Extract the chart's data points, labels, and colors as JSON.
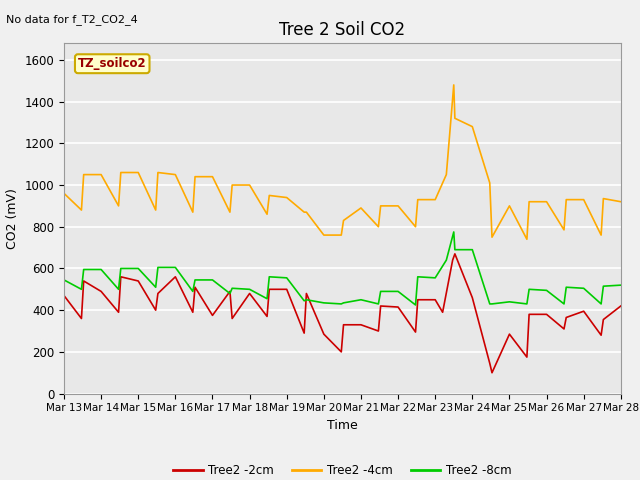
{
  "title": "Tree 2 Soil CO2",
  "top_left_text": "No data for f_T2_CO2_4",
  "ylabel": "CO2 (mV)",
  "xlabel": "Time",
  "legend_label": "TZ_soilco2",
  "ylim": [
    0,
    1680
  ],
  "yticks": [
    0,
    200,
    400,
    600,
    800,
    1000,
    1200,
    1400,
    1600
  ],
  "xtick_labels": [
    "Mar 13",
    "Mar 14",
    "Mar 15",
    "Mar 16",
    "Mar 17",
    "Mar 18",
    "Mar 19",
    "Mar 20",
    "Mar 21",
    "Mar 22",
    "Mar 23",
    "Mar 24",
    "Mar 25",
    "Mar 26",
    "Mar 27",
    "Mar 28"
  ],
  "series_labels": [
    "Tree2 -2cm",
    "Tree2 -4cm",
    "Tree2 -8cm"
  ],
  "series_colors": [
    "#cc0000",
    "#ffaa00",
    "#00cc00"
  ],
  "background_color": "#e8e8e8",
  "fig_background": "#f0f0f0",
  "title_fontsize": 12,
  "legend_box_color": "#ffffcc",
  "legend_box_edge": "#ccaa00",
  "red_x": [
    0,
    0.47,
    0.53,
    1,
    1.47,
    1.53,
    2,
    2.47,
    2.53,
    3,
    3.47,
    3.53,
    4,
    4.47,
    4.53,
    5,
    5.47,
    5.53,
    6,
    6.47,
    6.53,
    7,
    7.47,
    7.53,
    8,
    8.47,
    8.53,
    9,
    9.47,
    9.53,
    10,
    10.2,
    10.47,
    10.53,
    11,
    11.47,
    11.53,
    12,
    12.47,
    12.53,
    13,
    13.47,
    13.53,
    14,
    14.47,
    14.53,
    15
  ],
  "red_y": [
    470,
    360,
    540,
    490,
    390,
    560,
    540,
    400,
    480,
    560,
    390,
    510,
    375,
    490,
    360,
    480,
    370,
    500,
    500,
    290,
    480,
    285,
    200,
    330,
    330,
    300,
    420,
    415,
    295,
    450,
    450,
    390,
    640,
    670,
    460,
    145,
    100,
    285,
    175,
    380,
    380,
    310,
    365,
    395,
    280,
    355,
    420
  ],
  "orange_x": [
    0,
    0.47,
    0.53,
    1,
    1.47,
    1.53,
    2,
    2.47,
    2.53,
    3,
    3.47,
    3.53,
    4,
    4.47,
    4.53,
    5,
    5.47,
    5.53,
    6,
    6.47,
    6.53,
    7,
    7.47,
    7.53,
    8,
    8.47,
    8.53,
    9,
    9.47,
    9.53,
    10,
    10.3,
    10.5,
    10.53,
    11,
    11.47,
    11.53,
    12,
    12.47,
    12.53,
    13,
    13.47,
    13.53,
    14,
    14.47,
    14.53,
    15
  ],
  "orange_y": [
    960,
    880,
    1050,
    1050,
    900,
    1060,
    1060,
    880,
    1060,
    1050,
    870,
    1040,
    1040,
    870,
    1000,
    1000,
    860,
    950,
    940,
    870,
    870,
    760,
    760,
    830,
    890,
    800,
    900,
    900,
    800,
    930,
    930,
    1050,
    1480,
    1320,
    1280,
    1010,
    750,
    900,
    740,
    920,
    920,
    785,
    930,
    930,
    760,
    935,
    920
  ],
  "green_x": [
    0,
    0.47,
    0.53,
    1,
    1.47,
    1.53,
    2,
    2.47,
    2.53,
    3,
    3.47,
    3.53,
    4,
    4.47,
    4.53,
    5,
    5.47,
    5.53,
    6,
    6.47,
    6.53,
    7,
    7.47,
    7.53,
    8,
    8.47,
    8.53,
    9,
    9.47,
    9.53,
    10,
    10.3,
    10.5,
    10.53,
    11,
    11.47,
    11.53,
    12,
    12.47,
    12.53,
    13,
    13.47,
    13.53,
    14,
    14.47,
    14.53,
    15
  ],
  "green_y": [
    545,
    500,
    595,
    595,
    500,
    600,
    600,
    510,
    605,
    605,
    490,
    545,
    545,
    480,
    505,
    500,
    455,
    560,
    555,
    445,
    450,
    435,
    430,
    435,
    450,
    430,
    490,
    490,
    425,
    560,
    555,
    640,
    775,
    690,
    690,
    430,
    430,
    440,
    430,
    500,
    495,
    430,
    510,
    505,
    430,
    515,
    520
  ]
}
